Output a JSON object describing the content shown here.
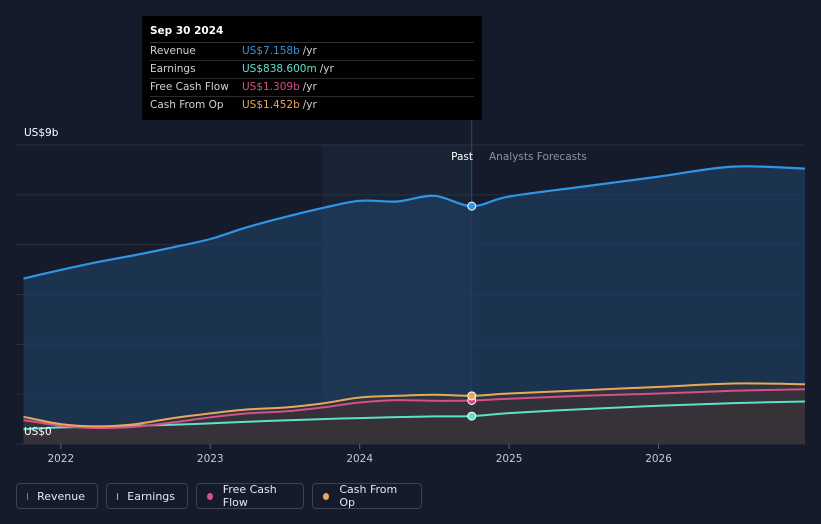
{
  "chart_data": {
    "type": "area",
    "y_unit_top_label": "US$9b",
    "y_unit_bottom_label": "US$0",
    "ylim": [
      0,
      9
    ],
    "xlim": [
      2021.7,
      2026.98
    ],
    "x_ticks": [
      2022,
      2023,
      2024,
      2025,
      2026
    ],
    "x_tick_labels": [
      "2022",
      "2023",
      "2024",
      "2025",
      "2026"
    ],
    "past_label": "Past",
    "forecast_label": "Analysts Forecasts",
    "divider_x": 2024.75,
    "shade_start_x": 2023.75,
    "series": [
      {
        "name": "Revenue",
        "color": "#2f96e6",
        "x": [
          2021.75,
          2022.0,
          2022.25,
          2022.5,
          2022.75,
          2023.0,
          2023.25,
          2023.5,
          2023.75,
          2024.0,
          2024.25,
          2024.5,
          2024.75,
          2025.0,
          2025.5,
          2026.0,
          2026.5,
          2026.98
        ],
        "values": [
          4.98,
          5.24,
          5.48,
          5.69,
          5.92,
          6.17,
          6.53,
          6.83,
          7.1,
          7.32,
          7.3,
          7.47,
          7.16,
          7.45,
          7.75,
          8.05,
          8.35,
          8.29
        ]
      },
      {
        "name": "Earnings",
        "color": "#5fe0c8",
        "x": [
          2021.75,
          2022.0,
          2022.25,
          2022.5,
          2022.75,
          2023.0,
          2023.25,
          2023.5,
          2023.75,
          2024.0,
          2024.25,
          2024.5,
          2024.75,
          2025.0,
          2025.5,
          2026.0,
          2026.5,
          2026.98
        ],
        "values": [
          0.45,
          0.5,
          0.52,
          0.55,
          0.58,
          0.62,
          0.67,
          0.71,
          0.75,
          0.78,
          0.81,
          0.83,
          0.84,
          0.93,
          1.05,
          1.15,
          1.23,
          1.28
        ]
      },
      {
        "name": "Free Cash Flow",
        "color": "#d64f8a",
        "x": [
          2021.75,
          2022.0,
          2022.25,
          2022.5,
          2022.75,
          2023.0,
          2023.25,
          2023.5,
          2023.75,
          2024.0,
          2024.25,
          2024.5,
          2024.75,
          2025.0,
          2025.5,
          2026.0,
          2026.5,
          2026.98
        ],
        "values": [
          0.72,
          0.55,
          0.48,
          0.52,
          0.65,
          0.8,
          0.92,
          0.98,
          1.1,
          1.25,
          1.32,
          1.3,
          1.31,
          1.36,
          1.45,
          1.52,
          1.6,
          1.65
        ]
      },
      {
        "name": "Cash From Op",
        "color": "#e8a85a",
        "x": [
          2021.75,
          2022.0,
          2022.25,
          2022.5,
          2022.75,
          2023.0,
          2023.25,
          2023.5,
          2023.75,
          2024.0,
          2024.25,
          2024.5,
          2024.75,
          2025.0,
          2025.5,
          2026.0,
          2026.5,
          2026.98
        ],
        "values": [
          0.82,
          0.6,
          0.53,
          0.6,
          0.78,
          0.92,
          1.04,
          1.1,
          1.22,
          1.4,
          1.45,
          1.48,
          1.45,
          1.52,
          1.62,
          1.72,
          1.82,
          1.8
        ]
      }
    ]
  },
  "tooltip": {
    "date": "Sep 30 2024",
    "rows": [
      {
        "label": "Revenue",
        "value": "US$7.158b",
        "unit": "/yr",
        "color": "#2f96e6"
      },
      {
        "label": "Earnings",
        "value": "US$838.600m",
        "unit": "/yr",
        "color": "#5fe0c8"
      },
      {
        "label": "Free Cash Flow",
        "value": "US$1.309b",
        "unit": "/yr",
        "color": "#d64f8a"
      },
      {
        "label": "Cash From Op",
        "value": "US$1.452b",
        "unit": "/yr",
        "color": "#e8a85a"
      }
    ]
  },
  "legend": [
    {
      "label": "Revenue",
      "color": "#2f96e6"
    },
    {
      "label": "Earnings",
      "color": "#5fe0c8"
    },
    {
      "label": "Free Cash Flow",
      "color": "#d64f8a"
    },
    {
      "label": "Cash From Op",
      "color": "#e8a85a"
    }
  ]
}
